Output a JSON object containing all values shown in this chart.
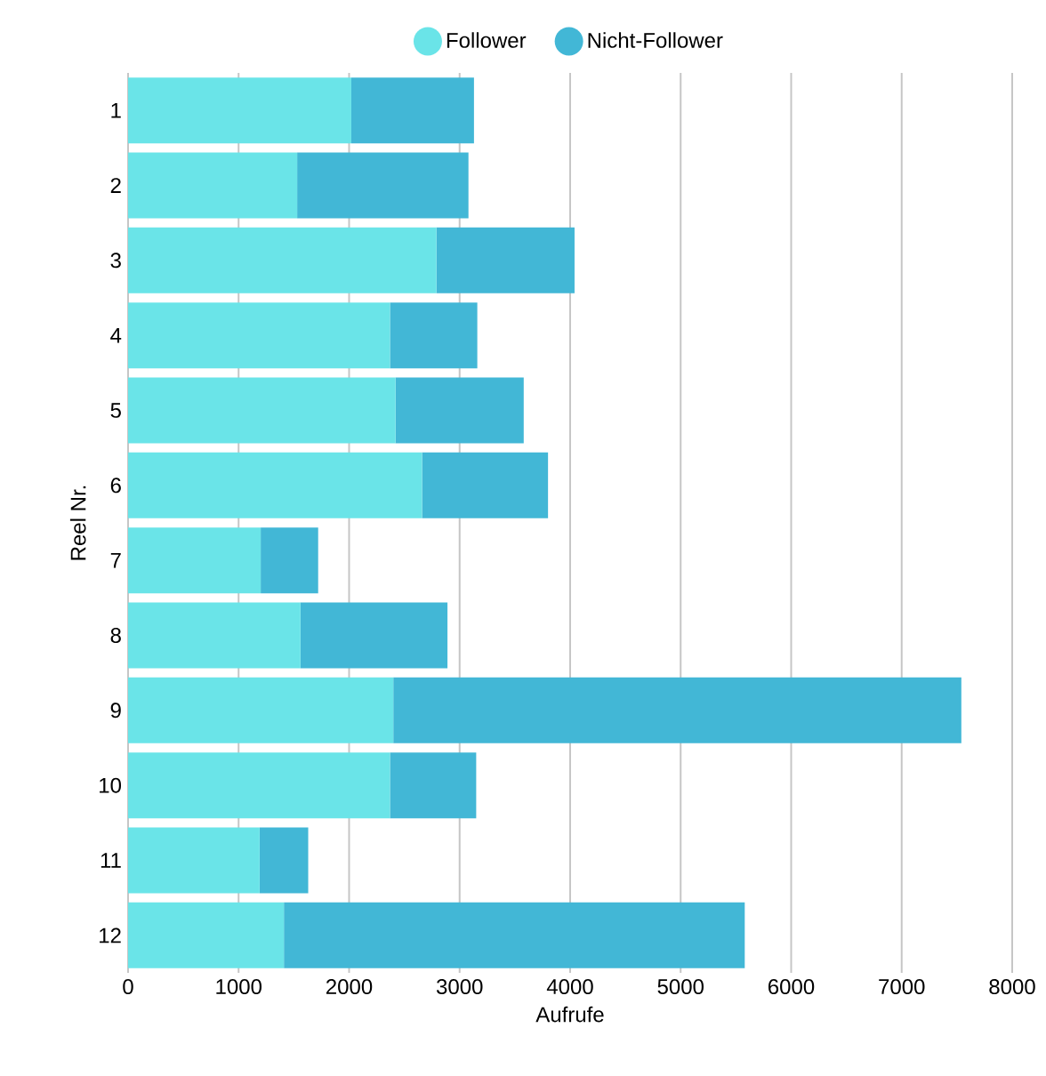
{
  "chart_data": {
    "type": "bar",
    "orientation": "horizontal",
    "stacked": true,
    "xlabel": "Aufrufe",
    "ylabel": "Reel Nr.",
    "categories": [
      "1",
      "2",
      "3",
      "4",
      "5",
      "6",
      "7",
      "8",
      "9",
      "10",
      "11",
      "12"
    ],
    "series": [
      {
        "name": "Follower",
        "color": "#6ae4e8",
        "values": [
          2020,
          1530,
          2790,
          2370,
          2420,
          2660,
          1200,
          1560,
          2400,
          2370,
          1190,
          1410
        ]
      },
      {
        "name": "Nicht-Follower",
        "color": "#42b7d6",
        "values": [
          1110,
          1550,
          1250,
          790,
          1160,
          1140,
          520,
          1330,
          5140,
          780,
          440,
          4170
        ]
      }
    ],
    "xlim": [
      0,
      8000
    ],
    "xticks": [
      0,
      1000,
      2000,
      3000,
      4000,
      5000,
      6000,
      7000,
      8000
    ],
    "grid": "x",
    "legend": "top"
  }
}
